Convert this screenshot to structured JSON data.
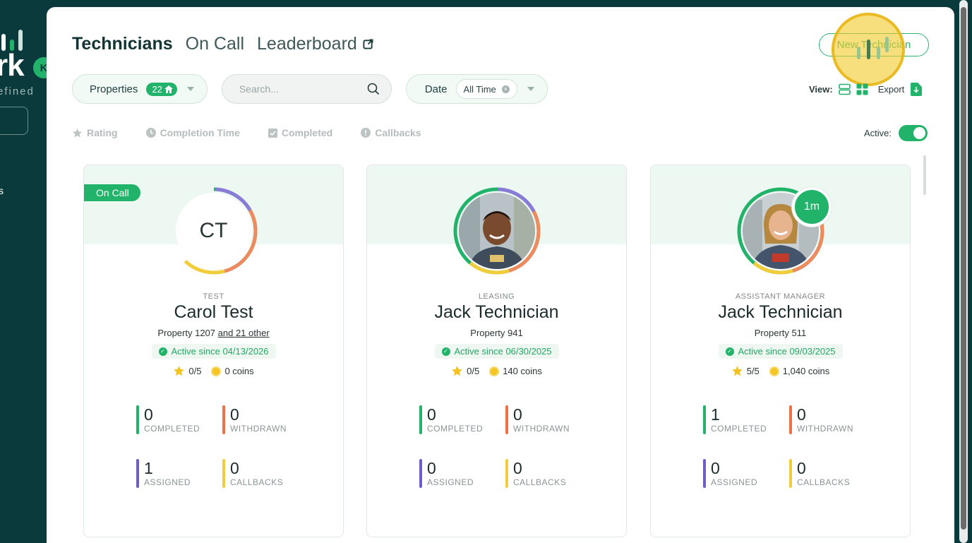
{
  "sidebar": {
    "logo_text": "rk",
    "logo_badge": "K",
    "logo_sub": "efined",
    "nav_fragment": "s"
  },
  "header": {
    "tabs": [
      {
        "label": "Technicians",
        "active": true
      },
      {
        "label": "On Call",
        "active": false
      },
      {
        "label": "Leaderboard",
        "active": false
      }
    ],
    "new_button_label": "New Technician"
  },
  "filters": {
    "properties_label": "Properties",
    "properties_count": "22",
    "search_placeholder": "Search...",
    "date_label": "Date",
    "date_value": "All Time"
  },
  "view": {
    "label": "View:",
    "export_label": "Export"
  },
  "sort": {
    "items": [
      "Rating",
      "Completion Time",
      "Completed",
      "Callbacks"
    ]
  },
  "active_toggle": {
    "label": "Active:",
    "on": true
  },
  "colors": {
    "accent": "#22b36a",
    "ring_green": "#22b36a",
    "ring_purple": "#8b7bd8",
    "ring_orange": "#ef8a5e",
    "ring_yellow": "#f2cd3b"
  },
  "cards": [
    {
      "on_call_label": "On Call",
      "initials": "CT",
      "role": "TEST",
      "name": "Carol Test",
      "property": "Property 1207",
      "property_more": "and 21 other",
      "active_since": "Active since 04/13/2026",
      "rating": "0/5",
      "coins": "0 coins",
      "stats": [
        {
          "value": "0",
          "label": "COMPLETED"
        },
        {
          "value": "0",
          "label": "WITHDRAWN"
        },
        {
          "value": "1",
          "label": "ASSIGNED"
        },
        {
          "value": "0",
          "label": "CALLBACKS"
        }
      ]
    },
    {
      "role": "LEASING",
      "name": "Jack Technician",
      "property": "Property 941",
      "active_since": "Active since 06/30/2025",
      "rating": "0/5",
      "coins": "140 coins",
      "stats": [
        {
          "value": "0",
          "label": "COMPLETED"
        },
        {
          "value": "0",
          "label": "WITHDRAWN"
        },
        {
          "value": "0",
          "label": "ASSIGNED"
        },
        {
          "value": "0",
          "label": "CALLBACKS"
        }
      ]
    },
    {
      "badge": "1m",
      "role": "ASSISTANT MANAGER",
      "name": "Jack Technician",
      "property": "Property 511",
      "active_since": "Active since 09/03/2025",
      "rating": "5/5",
      "coins": "1,040 coins",
      "stats": [
        {
          "value": "1",
          "label": "COMPLETED"
        },
        {
          "value": "0",
          "label": "WITHDRAWN"
        },
        {
          "value": "0",
          "label": "ASSIGNED"
        },
        {
          "value": "0",
          "label": "CALLBACKS"
        }
      ]
    }
  ]
}
